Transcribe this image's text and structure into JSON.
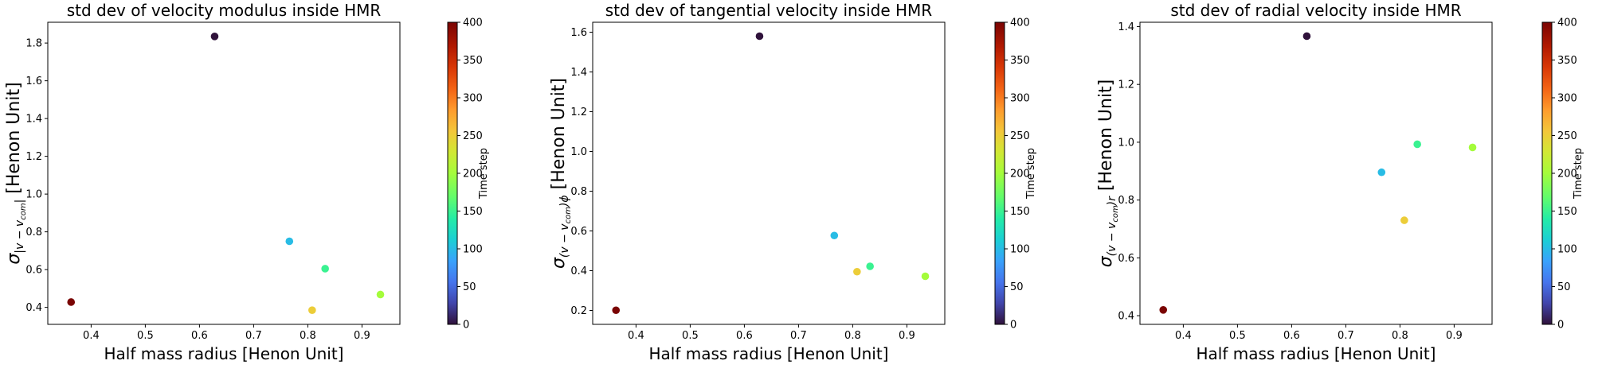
{
  "chart_data": [
    {
      "type": "scatter",
      "title": "std dev of velocity modulus inside HMR",
      "xlabel": "Half mass radius [Henon Unit]",
      "ylabel": {
        "sigma": "σ",
        "sub": "|v − v",
        "subsub": "com",
        "subend": "|",
        "unit": " [Henon Unit]"
      },
      "xlim": [
        0.32,
        0.97
      ],
      "ylim": [
        0.31,
        1.91
      ],
      "xticks": [
        "0.4",
        "0.5",
        "0.6",
        "0.7",
        "0.8",
        "0.9"
      ],
      "yticks": [
        "0.4",
        "0.6",
        "0.8",
        "1.0",
        "1.2",
        "1.4",
        "1.6",
        "1.8"
      ],
      "points": [
        {
          "x": 0.628,
          "y": 1.835,
          "t": 0
        },
        {
          "x": 0.766,
          "y": 0.75,
          "t": 100
        },
        {
          "x": 0.832,
          "y": 0.605,
          "t": 150
        },
        {
          "x": 0.934,
          "y": 0.468,
          "t": 200
        },
        {
          "x": 0.808,
          "y": 0.385,
          "t": 250
        },
        {
          "x": 0.363,
          "y": 0.428,
          "t": 400
        }
      ],
      "colorbar": {
        "label": "Time step",
        "range": [
          0,
          400
        ],
        "ticks": [
          "0",
          "50",
          "100",
          "150",
          "200",
          "250",
          "300",
          "350",
          "400"
        ]
      }
    },
    {
      "type": "scatter",
      "title": "std dev of tangential velocity inside HMR",
      "xlabel": "Half mass radius [Henon Unit]",
      "ylabel": {
        "sigma": "σ",
        "sub": "(v − v",
        "subsub": "com",
        "subend": ")ϕ",
        "unit": " [Henon Unit]"
      },
      "xlim": [
        0.32,
        0.97
      ],
      "ylim": [
        0.13,
        1.65
      ],
      "xticks": [
        "0.4",
        "0.5",
        "0.6",
        "0.7",
        "0.8",
        "0.9"
      ],
      "yticks": [
        "0.2",
        "0.4",
        "0.6",
        "0.8",
        "1.0",
        "1.2",
        "1.4",
        "1.6"
      ],
      "points": [
        {
          "x": 0.628,
          "y": 1.58,
          "t": 0
        },
        {
          "x": 0.766,
          "y": 0.577,
          "t": 100
        },
        {
          "x": 0.832,
          "y": 0.422,
          "t": 150
        },
        {
          "x": 0.934,
          "y": 0.372,
          "t": 200
        },
        {
          "x": 0.808,
          "y": 0.395,
          "t": 250
        },
        {
          "x": 0.363,
          "y": 0.201,
          "t": 400
        }
      ],
      "colorbar": {
        "label": "Time step",
        "range": [
          0,
          400
        ],
        "ticks": [
          "0",
          "50",
          "100",
          "150",
          "200",
          "250",
          "300",
          "350",
          "400"
        ]
      }
    },
    {
      "type": "scatter",
      "title": "std dev of radial velocity inside HMR",
      "xlabel": "Half mass radius [Henon Unit]",
      "ylabel": {
        "sigma": "σ",
        "sub": "(v − v",
        "subsub": "com",
        "subend": ")r",
        "unit": " [Henon Unit]"
      },
      "xlim": [
        0.32,
        0.97
      ],
      "ylim": [
        0.37,
        1.415
      ],
      "xticks": [
        "0.4",
        "0.5",
        "0.6",
        "0.7",
        "0.8",
        "0.9"
      ],
      "yticks": [
        "0.4",
        "0.6",
        "0.8",
        "1.0",
        "1.2",
        "1.4"
      ],
      "points": [
        {
          "x": 0.628,
          "y": 1.367,
          "t": 0
        },
        {
          "x": 0.766,
          "y": 0.896,
          "t": 100
        },
        {
          "x": 0.832,
          "y": 0.993,
          "t": 150
        },
        {
          "x": 0.934,
          "y": 0.982,
          "t": 200
        },
        {
          "x": 0.808,
          "y": 0.73,
          "t": 250
        },
        {
          "x": 0.363,
          "y": 0.42,
          "t": 400
        }
      ],
      "colorbar": {
        "label": "Time step",
        "range": [
          0,
          400
        ],
        "ticks": [
          "0",
          "50",
          "100",
          "150",
          "200",
          "250",
          "300",
          "350",
          "400"
        ]
      }
    }
  ]
}
